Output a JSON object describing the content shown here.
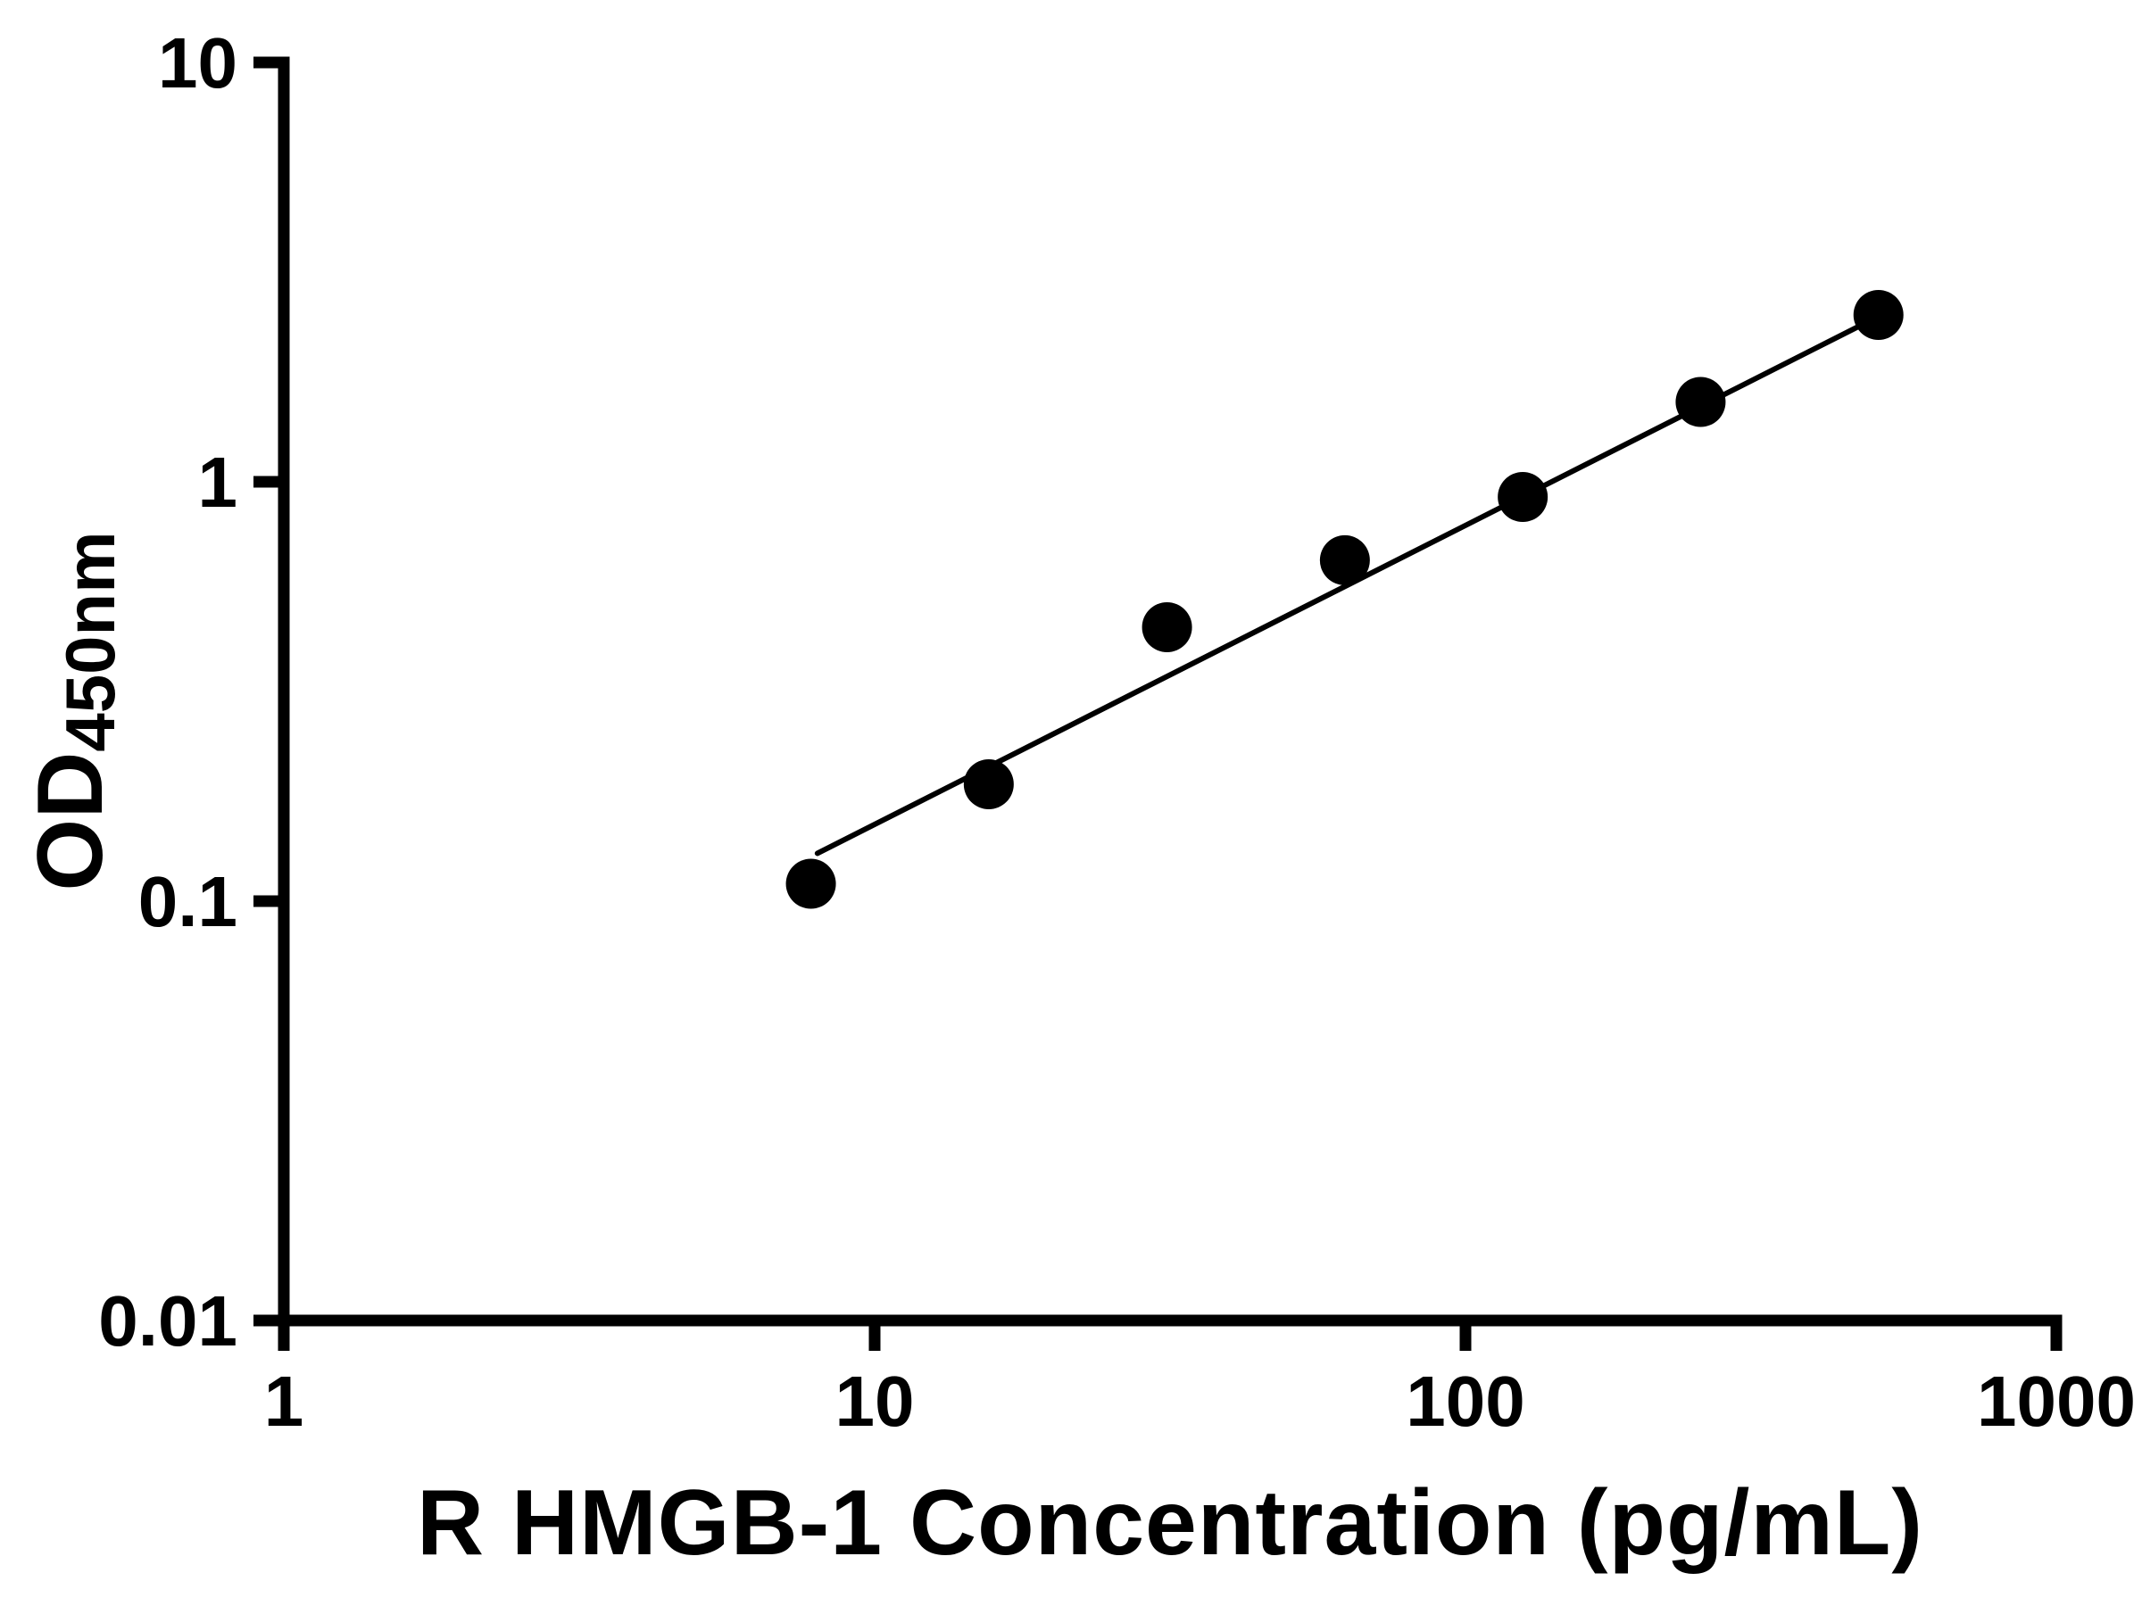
{
  "chart_data": {
    "type": "scatter",
    "title": "",
    "xlabel": "R HMGB-1 Concentration (pg/mL)",
    "ylabel_main": "OD",
    "ylabel_sub": "450nm",
    "x_scale": "log",
    "y_scale": "log",
    "xlim": [
      1,
      1000
    ],
    "ylim": [
      0.01,
      10
    ],
    "x_ticks": [
      1,
      10,
      100,
      1000
    ],
    "x_tick_labels": [
      "1",
      "10",
      "100",
      "1000"
    ],
    "y_ticks": [
      0.01,
      0.1,
      1,
      10
    ],
    "y_tick_labels": [
      "0.01",
      "0.1",
      "1",
      "10"
    ],
    "grid": false,
    "legend": "none",
    "points": [
      {
        "x": 7.8,
        "y": 0.11
      },
      {
        "x": 15.6,
        "y": 0.19
      },
      {
        "x": 31.25,
        "y": 0.45
      },
      {
        "x": 62.5,
        "y": 0.65
      },
      {
        "x": 125,
        "y": 0.92
      },
      {
        "x": 250,
        "y": 1.55
      },
      {
        "x": 500,
        "y": 2.5
      }
    ],
    "trendline": {
      "x1": 8,
      "y1": 0.13,
      "x2": 520,
      "y2": 2.55
    },
    "marker_color": "#000000",
    "line_color": "#000000",
    "axis_color": "#000000"
  }
}
